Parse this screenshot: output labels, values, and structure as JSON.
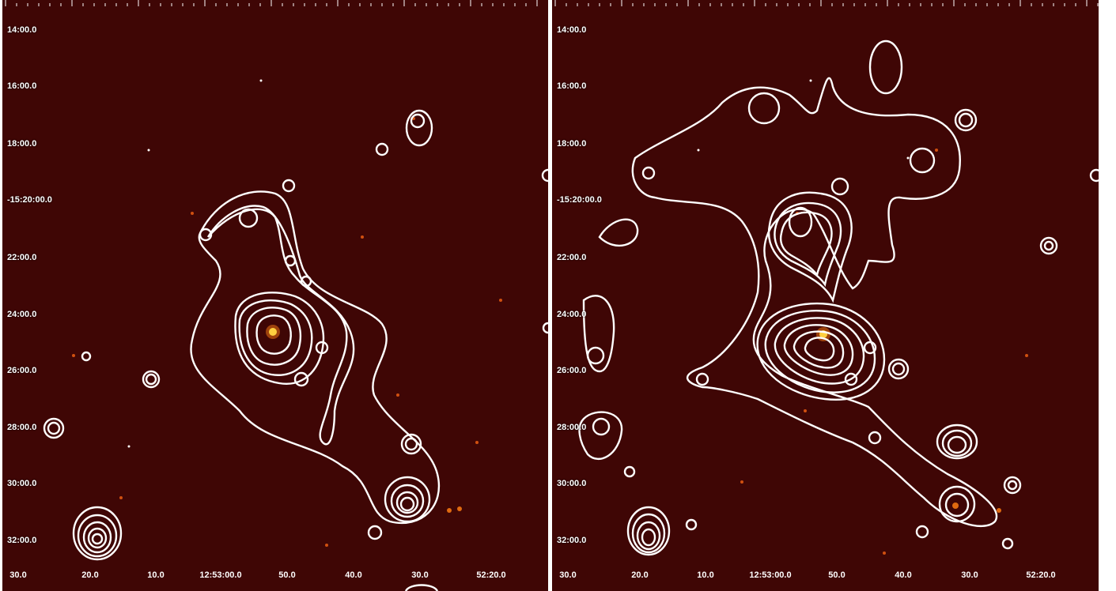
{
  "panels": [
    {
      "name": "left",
      "dec_labels": [
        "14:00.0",
        "16:00.0",
        "18:00.0",
        "-15:20:00.0",
        "22:00.0",
        "24:00.0",
        "26:00.0",
        "28:00.0",
        "30:00.0",
        "32:00.0"
      ],
      "ra_labels": [
        "30.0",
        "20.0",
        "10.0",
        "12:53:00.0",
        "50.0",
        "40.0",
        "30.0",
        "52:20.0"
      ]
    },
    {
      "name": "right",
      "dec_labels": [
        "14:00.0",
        "16:00.0",
        "18:00.0",
        "-15:20:00.0",
        "22:00.0",
        "24:00.0",
        "26:00.0",
        "28:00.0",
        "30:00.0",
        "32:00.0"
      ],
      "ra_labels": [
        "30.0",
        "20.0",
        "10.0",
        "12:53:00.0",
        "50.0",
        "40.0",
        "30.0",
        "52:20.0"
      ]
    }
  ],
  "colors": {
    "background": "#3f0605",
    "contour": "#ffffff",
    "source_hot": "#ffd040",
    "source_warm": "#e06a10"
  }
}
